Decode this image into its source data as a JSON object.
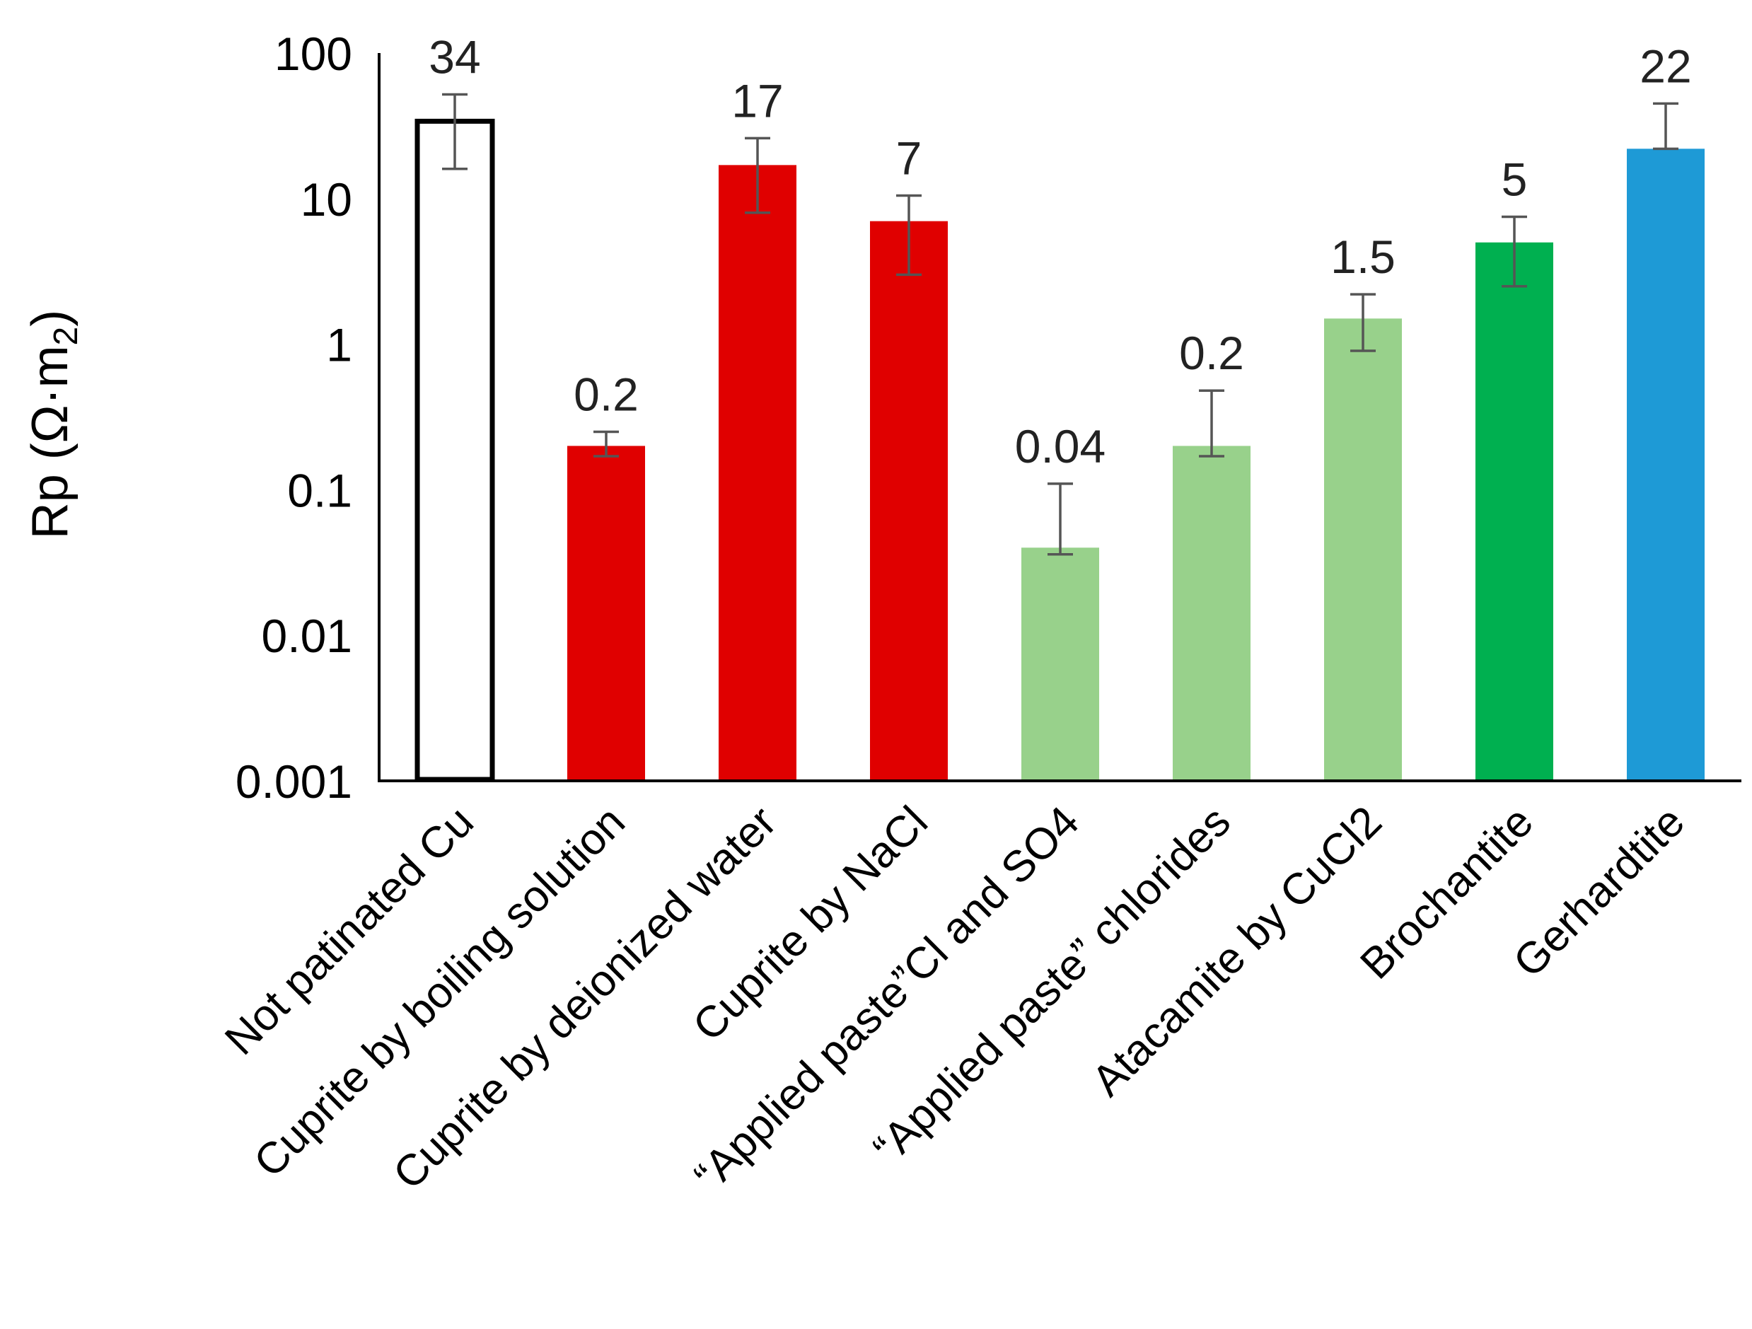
{
  "chart_data": {
    "type": "bar",
    "title": "",
    "xlabel": "",
    "ylabel": "Rp (Ω·m",
    "ylabel_subscript": "2",
    "ylabel_close": ")",
    "yscale": "log",
    "ylim": [
      0.001,
      100
    ],
    "yticks": [
      {
        "value": 100,
        "label": "100"
      },
      {
        "value": 10,
        "label": "10"
      },
      {
        "value": 1,
        "label": "1"
      },
      {
        "value": 0.1,
        "label": "0.1"
      },
      {
        "value": 0.01,
        "label": "0.01"
      },
      {
        "value": 0.001,
        "label": "0.001"
      }
    ],
    "categories": [
      "Not patinated Cu",
      "Cuprite by boiling solution",
      "Cuprite by deionized water",
      "Cuprite by NaCl",
      "“Applied paste”Cl and SO4",
      "“Applied paste” chlorides",
      "Atacamite by CuCl2",
      "Brochantite",
      "Gerhardtite"
    ],
    "values": [
      34,
      0.2,
      17,
      7,
      0.04,
      0.2,
      1.5,
      5,
      22
    ],
    "data_labels": [
      "34",
      "0.2",
      "17",
      "7",
      "0.04",
      "0.2",
      "1.5",
      "5",
      "22"
    ],
    "error_low": [
      16,
      0.17,
      8,
      3,
      0.036,
      0.17,
      0.9,
      2.5,
      22
    ],
    "error_high": [
      52,
      0.25,
      26,
      10.5,
      0.11,
      0.48,
      2.2,
      7.5,
      45
    ],
    "colors": [
      "#ffffff",
      "#e00000",
      "#e00000",
      "#e00000",
      "#98d18b",
      "#98d18b",
      "#98d18b",
      "#00b050",
      "#1e9ad6"
    ],
    "outline": [
      "#000000",
      "none",
      "none",
      "none",
      "none",
      "none",
      "none",
      "none",
      "none"
    ],
    "grid": false,
    "legend": "none"
  }
}
